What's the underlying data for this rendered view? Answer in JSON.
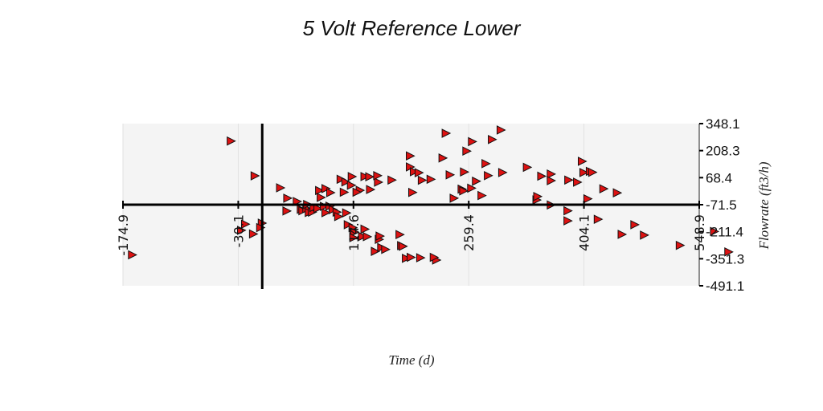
{
  "chart_data": {
    "type": "scatter",
    "title": "5 Volt Reference Lower",
    "xlabel": "Time (d)",
    "ylabel": "Flowrate (ft3/h)",
    "xlim": [
      -174.9,
      548.9
    ],
    "ylim": [
      -491.1,
      348.1
    ],
    "x_ticks": [
      "-174.9",
      "-30.1",
      "114.6",
      "259.4",
      "404.1",
      "548.9"
    ],
    "y_ticks": [
      "348.1",
      "208.3",
      "68.4",
      "-71.5",
      "-211.4",
      "-351.3",
      "-491.1"
    ],
    "x_origin": 0,
    "y_origin": -71.5,
    "grid": true,
    "marker": "triangle-right",
    "marker_color": "#dd1111",
    "plot_background": "#f4f4f4",
    "series": [
      {
        "points": [
          [
            -164,
            -331
          ],
          [
            -40,
            258
          ],
          [
            -27,
            -204
          ],
          [
            -22,
            -172
          ],
          [
            -10,
            78
          ],
          [
            -12,
            -223
          ],
          [
            -1,
            -167
          ],
          [
            -3,
            -190
          ],
          [
            22,
            16
          ],
          [
            31,
            -38
          ],
          [
            30,
            -104
          ],
          [
            43,
            -55
          ],
          [
            48,
            -95
          ],
          [
            50,
            -103
          ],
          [
            55,
            -92
          ],
          [
            58,
            -112
          ],
          [
            56,
            -70
          ],
          [
            62,
            -110
          ],
          [
            64,
            -86
          ],
          [
            69,
            -91
          ],
          [
            71,
            2
          ],
          [
            73,
            -34
          ],
          [
            79,
            12
          ],
          [
            79,
            -113
          ],
          [
            77,
            -80
          ],
          [
            85,
            -9
          ],
          [
            84,
            -79
          ],
          [
            88,
            -97
          ],
          [
            93,
            -110
          ],
          [
            95,
            -133
          ],
          [
            98,
            60
          ],
          [
            104,
            46
          ],
          [
            102,
            -7
          ],
          [
            105,
            -114
          ],
          [
            107,
            -175
          ],
          [
            112,
            74
          ],
          [
            111,
            29
          ],
          [
            113,
            -190
          ],
          [
            114,
            -216
          ],
          [
            115,
            -213
          ],
          [
            114,
            -242
          ],
          [
            122,
            3
          ],
          [
            118,
            -7
          ],
          [
            125,
            -236
          ],
          [
            128,
            -198
          ],
          [
            128,
            74
          ],
          [
            131,
            -237
          ],
          [
            134,
            73
          ],
          [
            135,
            7
          ],
          [
            141,
            -313
          ],
          [
            145,
            45
          ],
          [
            144,
            79
          ],
          [
            146,
            -251
          ],
          [
            147,
            -234
          ],
          [
            149,
            -293
          ],
          [
            154,
            -303
          ],
          [
            162,
            56
          ],
          [
            172,
            -226
          ],
          [
            174,
            -283
          ],
          [
            176,
            -287
          ],
          [
            180,
            -349
          ],
          [
            185,
            124
          ],
          [
            190,
            99
          ],
          [
            185,
            181
          ],
          [
            186,
            -344
          ],
          [
            198,
            -346
          ],
          [
            196,
            94
          ],
          [
            188,
            -8
          ],
          [
            200,
            55
          ],
          [
            218,
            -358
          ],
          [
            211,
            60
          ],
          [
            215,
            -344
          ],
          [
            226,
            170
          ],
          [
            230,
            298
          ],
          [
            235,
            83
          ],
          [
            240,
            -38
          ],
          [
            253,
            98
          ],
          [
            250,
            9
          ],
          [
            252,
            0
          ],
          [
            256,
            206
          ],
          [
            263,
            255
          ],
          [
            262,
            14
          ],
          [
            268,
            50
          ],
          [
            280,
            141
          ],
          [
            288,
            266
          ],
          [
            275,
            -24
          ],
          [
            283,
            79
          ],
          [
            299,
            315
          ],
          [
            301,
            95
          ],
          [
            332,
            122
          ],
          [
            350,
            76
          ],
          [
            362,
            87
          ],
          [
            384,
            56
          ],
          [
            362,
            -73
          ],
          [
            344,
            -47
          ],
          [
            345,
            -29
          ],
          [
            362,
            53
          ],
          [
            383,
            -103
          ],
          [
            383,
            -155
          ],
          [
            401,
            153
          ],
          [
            395,
            45
          ],
          [
            403,
            95
          ],
          [
            411,
            101
          ],
          [
            414,
            96
          ],
          [
            421,
            -147
          ],
          [
            408,
            -41
          ],
          [
            428,
            11
          ],
          [
            445,
            -10
          ],
          [
            451,
            -225
          ],
          [
            467,
            -175
          ],
          [
            479,
            -229
          ],
          [
            524,
            -282
          ],
          [
            567,
            -210
          ],
          [
            585,
            -316
          ]
        ]
      }
    ]
  }
}
